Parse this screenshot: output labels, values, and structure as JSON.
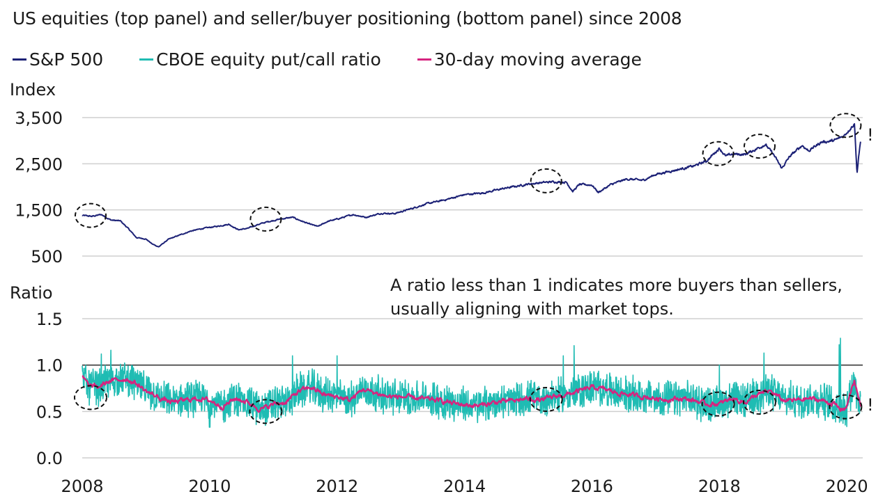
{
  "title": "US equities (top panel) and seller/buyer positioning (bottom panel) since 2008",
  "legend": [
    {
      "label": "S&P 500",
      "color": "#1c2176"
    },
    {
      "label": "CBOE equity put/call ratio",
      "color": "#1fbcb3"
    },
    {
      "label": "30-day moving average",
      "color": "#d6247f"
    }
  ],
  "chart_data": [
    {
      "type": "line",
      "panel": "top",
      "title": "US equities",
      "ylabel": "Index",
      "ylim": [
        500,
        3700
      ],
      "yticks": [
        500,
        1500,
        2500,
        3500
      ],
      "ytick_labels": [
        "500",
        "1,500",
        "2,500",
        "3,500"
      ],
      "xlim": [
        2008.0,
        2020.25
      ],
      "series": [
        {
          "name": "S&P 500",
          "color": "#1c2176",
          "x": [
            2008.0,
            2008.15,
            2008.3,
            2008.45,
            2008.6,
            2008.72,
            2008.85,
            2009.0,
            2009.1,
            2009.2,
            2009.35,
            2009.5,
            2009.7,
            2009.9,
            2010.1,
            2010.3,
            2010.45,
            2010.6,
            2010.75,
            2010.9,
            2011.1,
            2011.3,
            2011.55,
            2011.7,
            2011.85,
            2012.0,
            2012.25,
            2012.45,
            2012.7,
            2012.9,
            2013.1,
            2013.4,
            2013.7,
            2014.0,
            2014.3,
            2014.6,
            2014.8,
            2015.0,
            2015.2,
            2015.4,
            2015.6,
            2015.7,
            2015.8,
            2016.0,
            2016.1,
            2016.3,
            2016.55,
            2016.8,
            2017.0,
            2017.3,
            2017.6,
            2017.8,
            2018.0,
            2018.1,
            2018.2,
            2018.4,
            2018.55,
            2018.72,
            2018.85,
            2018.98,
            2019.1,
            2019.3,
            2019.4,
            2019.6,
            2019.8,
            2019.95,
            2020.05,
            2020.12,
            2020.16,
            2020.22
          ],
          "values": [
            1380,
            1360,
            1400,
            1280,
            1260,
            1100,
            900,
            870,
            760,
            700,
            860,
            940,
            1040,
            1100,
            1140,
            1190,
            1070,
            1100,
            1180,
            1240,
            1300,
            1340,
            1200,
            1140,
            1250,
            1300,
            1400,
            1340,
            1430,
            1420,
            1500,
            1630,
            1720,
            1830,
            1870,
            1960,
            2010,
            2060,
            2090,
            2110,
            2100,
            1900,
            2050,
            2040,
            1880,
            2050,
            2170,
            2140,
            2270,
            2360,
            2450,
            2560,
            2840,
            2660,
            2710,
            2700,
            2800,
            2920,
            2700,
            2400,
            2650,
            2900,
            2780,
            2970,
            3000,
            3100,
            3260,
            3370,
            2300,
            3050
          ]
        }
      ]
    },
    {
      "type": "line",
      "panel": "bottom",
      "title": "Seller/buyer positioning",
      "ylabel": "Ratio",
      "ylim": [
        0.0,
        1.6
      ],
      "yticks": [
        0.0,
        0.5,
        1.0,
        1.5
      ],
      "ytick_labels": [
        "0.0",
        "0.5",
        "1.0",
        "1.5"
      ],
      "reference_line": 1.0,
      "xlim": [
        2008.0,
        2020.25
      ],
      "xticks": [
        2008,
        2010,
        2012,
        2014,
        2016,
        2018,
        2020
      ],
      "xtick_labels": [
        "2008",
        "2010",
        "2012",
        "2014",
        "2016",
        "2018",
        "2020"
      ],
      "series": [
        {
          "name": "30-day moving average",
          "color": "#d6247f",
          "x": [
            2008.0,
            2008.1,
            2008.25,
            2008.4,
            2008.55,
            2008.7,
            2008.85,
            2009.0,
            2009.2,
            2009.4,
            2009.6,
            2009.8,
            2010.0,
            2010.2,
            2010.4,
            2010.6,
            2010.8,
            2011.0,
            2011.2,
            2011.4,
            2011.6,
            2011.8,
            2012.0,
            2012.2,
            2012.4,
            2012.6,
            2012.8,
            2013.0,
            2013.3,
            2013.6,
            2013.9,
            2014.2,
            2014.5,
            2014.8,
            2015.0,
            2015.2,
            2015.4,
            2015.6,
            2015.8,
            2016.0,
            2016.2,
            2016.4,
            2016.6,
            2016.8,
            2017.0,
            2017.2,
            2017.4,
            2017.6,
            2017.8,
            2018.0,
            2018.2,
            2018.4,
            2018.6,
            2018.8,
            2019.0,
            2019.2,
            2019.4,
            2019.6,
            2019.8,
            2019.9,
            2020.0,
            2020.05,
            2020.12,
            2020.22
          ],
          "values": [
            0.88,
            0.78,
            0.76,
            0.82,
            0.84,
            0.85,
            0.8,
            0.72,
            0.65,
            0.6,
            0.62,
            0.64,
            0.62,
            0.55,
            0.64,
            0.6,
            0.52,
            0.58,
            0.6,
            0.72,
            0.76,
            0.68,
            0.66,
            0.62,
            0.74,
            0.7,
            0.66,
            0.66,
            0.64,
            0.62,
            0.58,
            0.56,
            0.6,
            0.62,
            0.64,
            0.62,
            0.66,
            0.68,
            0.72,
            0.76,
            0.74,
            0.7,
            0.68,
            0.66,
            0.64,
            0.63,
            0.64,
            0.62,
            0.58,
            0.58,
            0.64,
            0.6,
            0.68,
            0.72,
            0.62,
            0.62,
            0.64,
            0.62,
            0.58,
            0.52,
            0.55,
            0.7,
            0.82,
            0.55
          ]
        },
        {
          "name": "CBOE equity put/call ratio",
          "color": "#1fbcb3",
          "description": "daily ratio fluctuating roughly ±0.15 around the 30-day average, spikes to 1.29 near 2019.9 and 1.21 near 2015.7, troughs near 0.33 around 2010.0"
        }
      ],
      "annotation": [
        "A ratio less than 1 indicates more buyers than sellers,",
        "usually aligning with market tops."
      ]
    }
  ],
  "highlight_markers": {
    "top": [
      2008.0,
      2010.75,
      2015.15,
      2017.85,
      2018.5,
      2019.85
    ],
    "bottom": [
      2008.0,
      2010.75,
      2015.15,
      2017.85,
      2018.5,
      2019.85
    ]
  },
  "exclamation_marks": [
    "!",
    "!"
  ]
}
